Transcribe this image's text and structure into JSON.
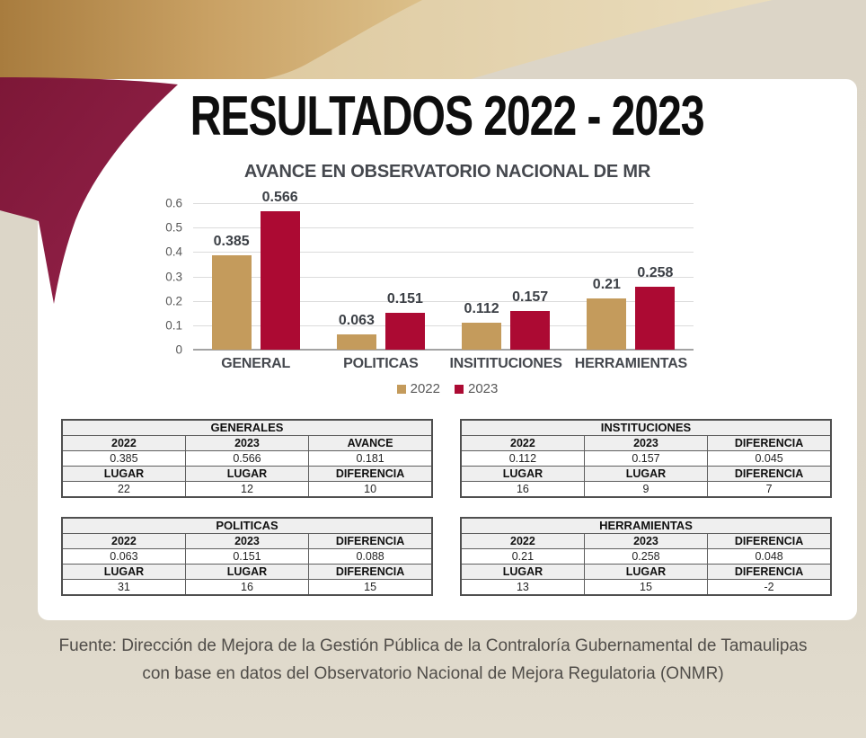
{
  "page": {
    "title": "RESULTADOS 2022 - 2023",
    "footer_line1": "Fuente: Dirección de Mejora de la Gestión Pública de la Contraloría Gubernamental de Tamaulipas",
    "footer_line2": "con base en datos del Observatorio Nacional de Mejora Regulatoria (ONMR)"
  },
  "colors": {
    "background": "#DCD5C7",
    "card": "#FFFFFF",
    "gold_dark": "#A87C3E",
    "gold_mid": "#C9A164",
    "gold_light": "#E5D4AE",
    "maroon": "#8C1D40",
    "bar_2022": "#C49B5C",
    "bar_2023": "#AC0A33",
    "gridline": "#DBDBDB",
    "axis_text": "#595959",
    "label_text": "#45484E",
    "table_border": "#5F5F5F",
    "table_header_bg": "#EFEFEF"
  },
  "chart_data": {
    "type": "bar",
    "title": "AVANCE EN OBSERVATORIO NACIONAL DE MR",
    "categories": [
      "GENERAL",
      "POLITICAS",
      "INSITITUCIONES",
      "HERRAMIENTAS"
    ],
    "series": [
      {
        "name": "2022",
        "color": "#C49B5C",
        "values": [
          0.385,
          0.063,
          0.112,
          0.21
        ]
      },
      {
        "name": "2023",
        "color": "#AC0A33",
        "values": [
          0.566,
          0.151,
          0.157,
          0.258
        ]
      }
    ],
    "xlabel": "",
    "ylabel": "",
    "ylim": [
      0,
      0.6
    ],
    "yticks": [
      0,
      0.1,
      0.2,
      0.3,
      0.4,
      0.5,
      0.6
    ],
    "grid": true,
    "legend_position": "bottom",
    "value_labels_shown": true
  },
  "tables": [
    {
      "title": "GENERALES",
      "col_headers": [
        "2022",
        "2023",
        "AVANCE"
      ],
      "value_row": [
        "0.385",
        "0.566",
        "0.181"
      ],
      "rank_headers": [
        "LUGAR",
        "LUGAR",
        "DIFERENCIA"
      ],
      "rank_row": [
        "22",
        "12",
        "10"
      ]
    },
    {
      "title": "INSTITUCIONES",
      "col_headers": [
        "2022",
        "2023",
        "DIFERENCIA"
      ],
      "value_row": [
        "0.112",
        "0.157",
        "0.045"
      ],
      "rank_headers": [
        "LUGAR",
        "LUGAR",
        "DIFERENCIA"
      ],
      "rank_row": [
        "16",
        "9",
        "7"
      ]
    },
    {
      "title": "POLITICAS",
      "col_headers": [
        "2022",
        "2023",
        "DIFERENCIA"
      ],
      "value_row": [
        "0.063",
        "0.151",
        "0.088"
      ],
      "rank_headers": [
        "LUGAR",
        "LUGAR",
        "DIFERENCIA"
      ],
      "rank_row": [
        "31",
        "16",
        "15"
      ]
    },
    {
      "title": "HERRAMIENTAS",
      "col_headers": [
        "2022",
        "2023",
        "DIFERENCIA"
      ],
      "value_row": [
        "0.21",
        "0.258",
        "0.048"
      ],
      "rank_headers": [
        "LUGAR",
        "LUGAR",
        "DIFERENCIA"
      ],
      "rank_row": [
        "13",
        "15",
        "-2"
      ]
    }
  ]
}
